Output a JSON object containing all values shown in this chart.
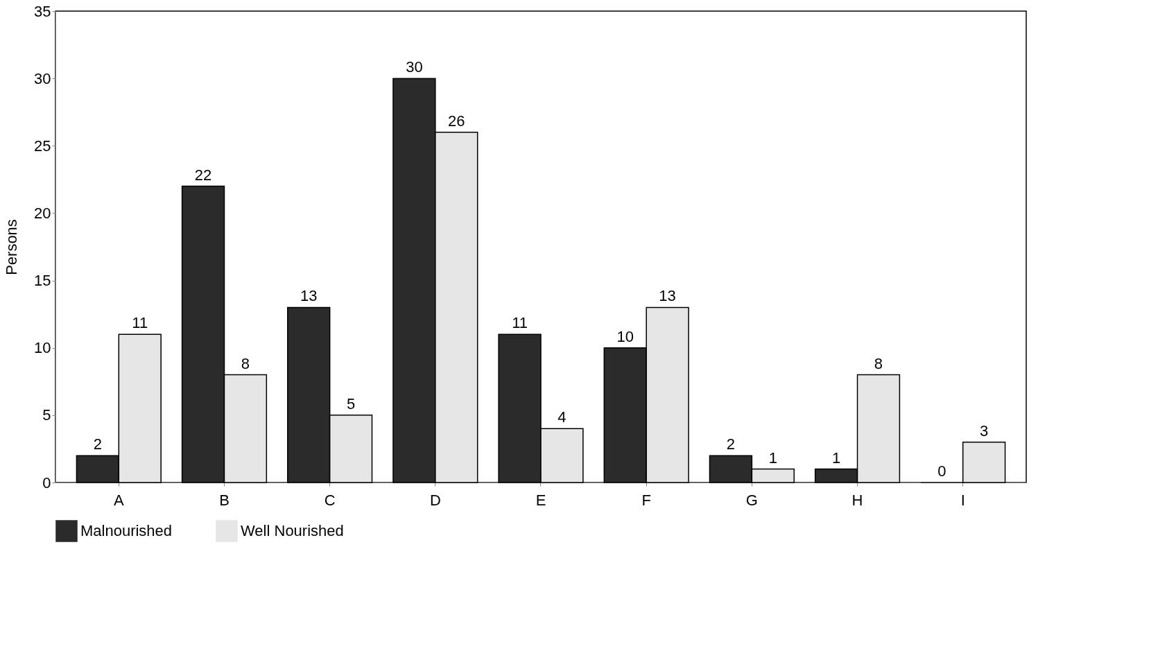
{
  "chart_data": {
    "type": "bar",
    "ylabel": "Persons",
    "categories": [
      "A",
      "B",
      "C",
      "D",
      "E",
      "F",
      "G",
      "H",
      "I"
    ],
    "series": [
      {
        "name": "Malnourished",
        "color": "#2b2b2b",
        "values": [
          2,
          22,
          13,
          30,
          11,
          10,
          2,
          1,
          0
        ]
      },
      {
        "name": "Well Nourished",
        "color": "#e6e6e6",
        "values": [
          11,
          8,
          5,
          26,
          4,
          13,
          1,
          8,
          3
        ]
      }
    ],
    "ylim": [
      0,
      35
    ],
    "yticks": [
      0,
      5,
      10,
      15,
      20,
      25,
      30,
      35
    ],
    "data_labels": true,
    "grid": false,
    "legend": "bottom"
  }
}
